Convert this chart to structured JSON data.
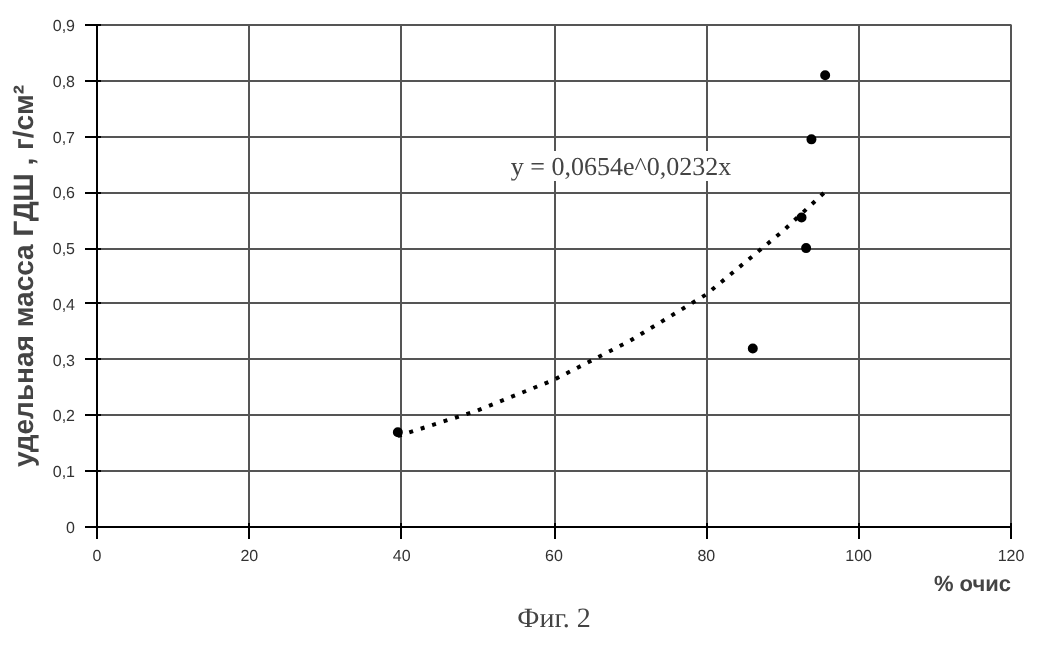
{
  "chart_data": {
    "type": "scatter",
    "xlabel": "% очис",
    "ylabel": "удельная масса ГДШ , г/см²",
    "x": [
      39.5,
      86.1,
      92.5,
      93.1,
      93.8,
      95.6
    ],
    "series": [
      {
        "color": "#000000",
        "values": [
          0.17,
          0.32,
          0.555,
          0.5,
          0.695,
          0.81
        ],
        "marker": "circle"
      },
      {
        "type": "line",
        "color": "#000000",
        "line_style": "dotted",
        "x": [
          39.5,
          50,
          60,
          70,
          80,
          90,
          96
        ],
        "values": [
          0.163,
          0.209,
          0.264,
          0.334,
          0.417,
          0.53,
          0.606
        ]
      }
    ],
    "xlim": [
      0,
      120
    ],
    "xticks": [
      0,
      20,
      40,
      60,
      80,
      100,
      120
    ],
    "ylim": [
      0,
      0.9
    ],
    "yticks": [
      0,
      {
        "value": 0.1,
        "label": "0,1"
      },
      {
        "value": 0.2,
        "label": "0,2"
      },
      {
        "value": 0.3,
        "label": "0,3"
      },
      {
        "value": 0.4,
        "label": "0,4"
      },
      {
        "value": 0.5,
        "label": "0,5"
      },
      {
        "value": 0.6,
        "label": "0,6"
      },
      {
        "value": 0.7,
        "label": "0,7"
      },
      {
        "value": 0.8,
        "label": "0,8"
      },
      {
        "value": 0.9,
        "label": "0,9"
      }
    ],
    "grid": true,
    "annotations": [
      "y = 0,0654e^0,0232x",
      "Фиг. 2"
    ]
  }
}
